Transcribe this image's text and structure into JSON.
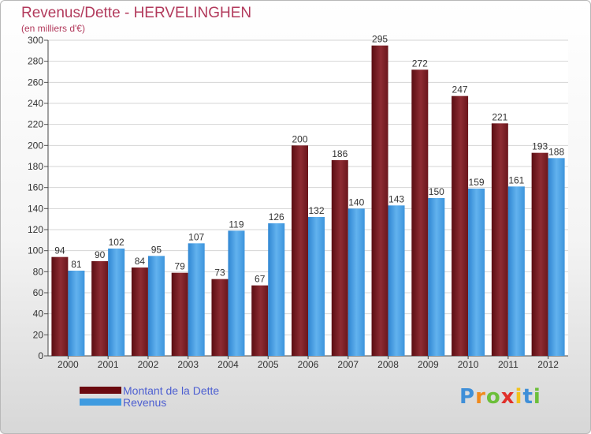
{
  "header": {
    "title": "Revenus/Dette - HERVELINGHEN",
    "subtitle": "(en milliers d'€)"
  },
  "chart_data": {
    "type": "bar",
    "title": "Revenus/Dette - HERVELINGHEN",
    "ylabel": "(en milliers d'€)",
    "xlabel": "",
    "ylim": [
      0,
      300
    ],
    "ytick_step": 20,
    "grid": true,
    "legend_position": "bottom-left",
    "categories": [
      "2000",
      "2001",
      "2002",
      "2003",
      "2004",
      "2005",
      "2006",
      "2007",
      "2008",
      "2009",
      "2010",
      "2011",
      "2012"
    ],
    "series": [
      {
        "name": "Montant de la Dette",
        "color": "#7b1f24",
        "values": [
          94,
          90,
          84,
          79,
          73,
          67,
          200,
          186,
          295,
          272,
          247,
          221,
          193
        ]
      },
      {
        "name": "Revenus",
        "color": "#4f9fe0",
        "values": [
          81,
          102,
          95,
          107,
          119,
          126,
          132,
          140,
          143,
          150,
          159,
          161,
          188
        ]
      }
    ]
  },
  "legend": {
    "items": [
      {
        "label": "Montant de la Dette",
        "color": "#6b0a10"
      },
      {
        "label": "Revenus",
        "color": "#3f9be0"
      }
    ]
  },
  "logo": {
    "text": "Proxiti",
    "letters": [
      {
        "ch": "P",
        "color": "#3f8fd8"
      },
      {
        "ch": "r",
        "color": "#f08a1c"
      },
      {
        "ch": "o",
        "color": "#6cbf3a"
      },
      {
        "ch": "x",
        "color": "#e0302a"
      },
      {
        "ch": "i",
        "color": "#f2c21a"
      },
      {
        "ch": "t",
        "color": "#3f8fd8"
      },
      {
        "ch": "i",
        "color": "#6cbf3a"
      }
    ]
  }
}
